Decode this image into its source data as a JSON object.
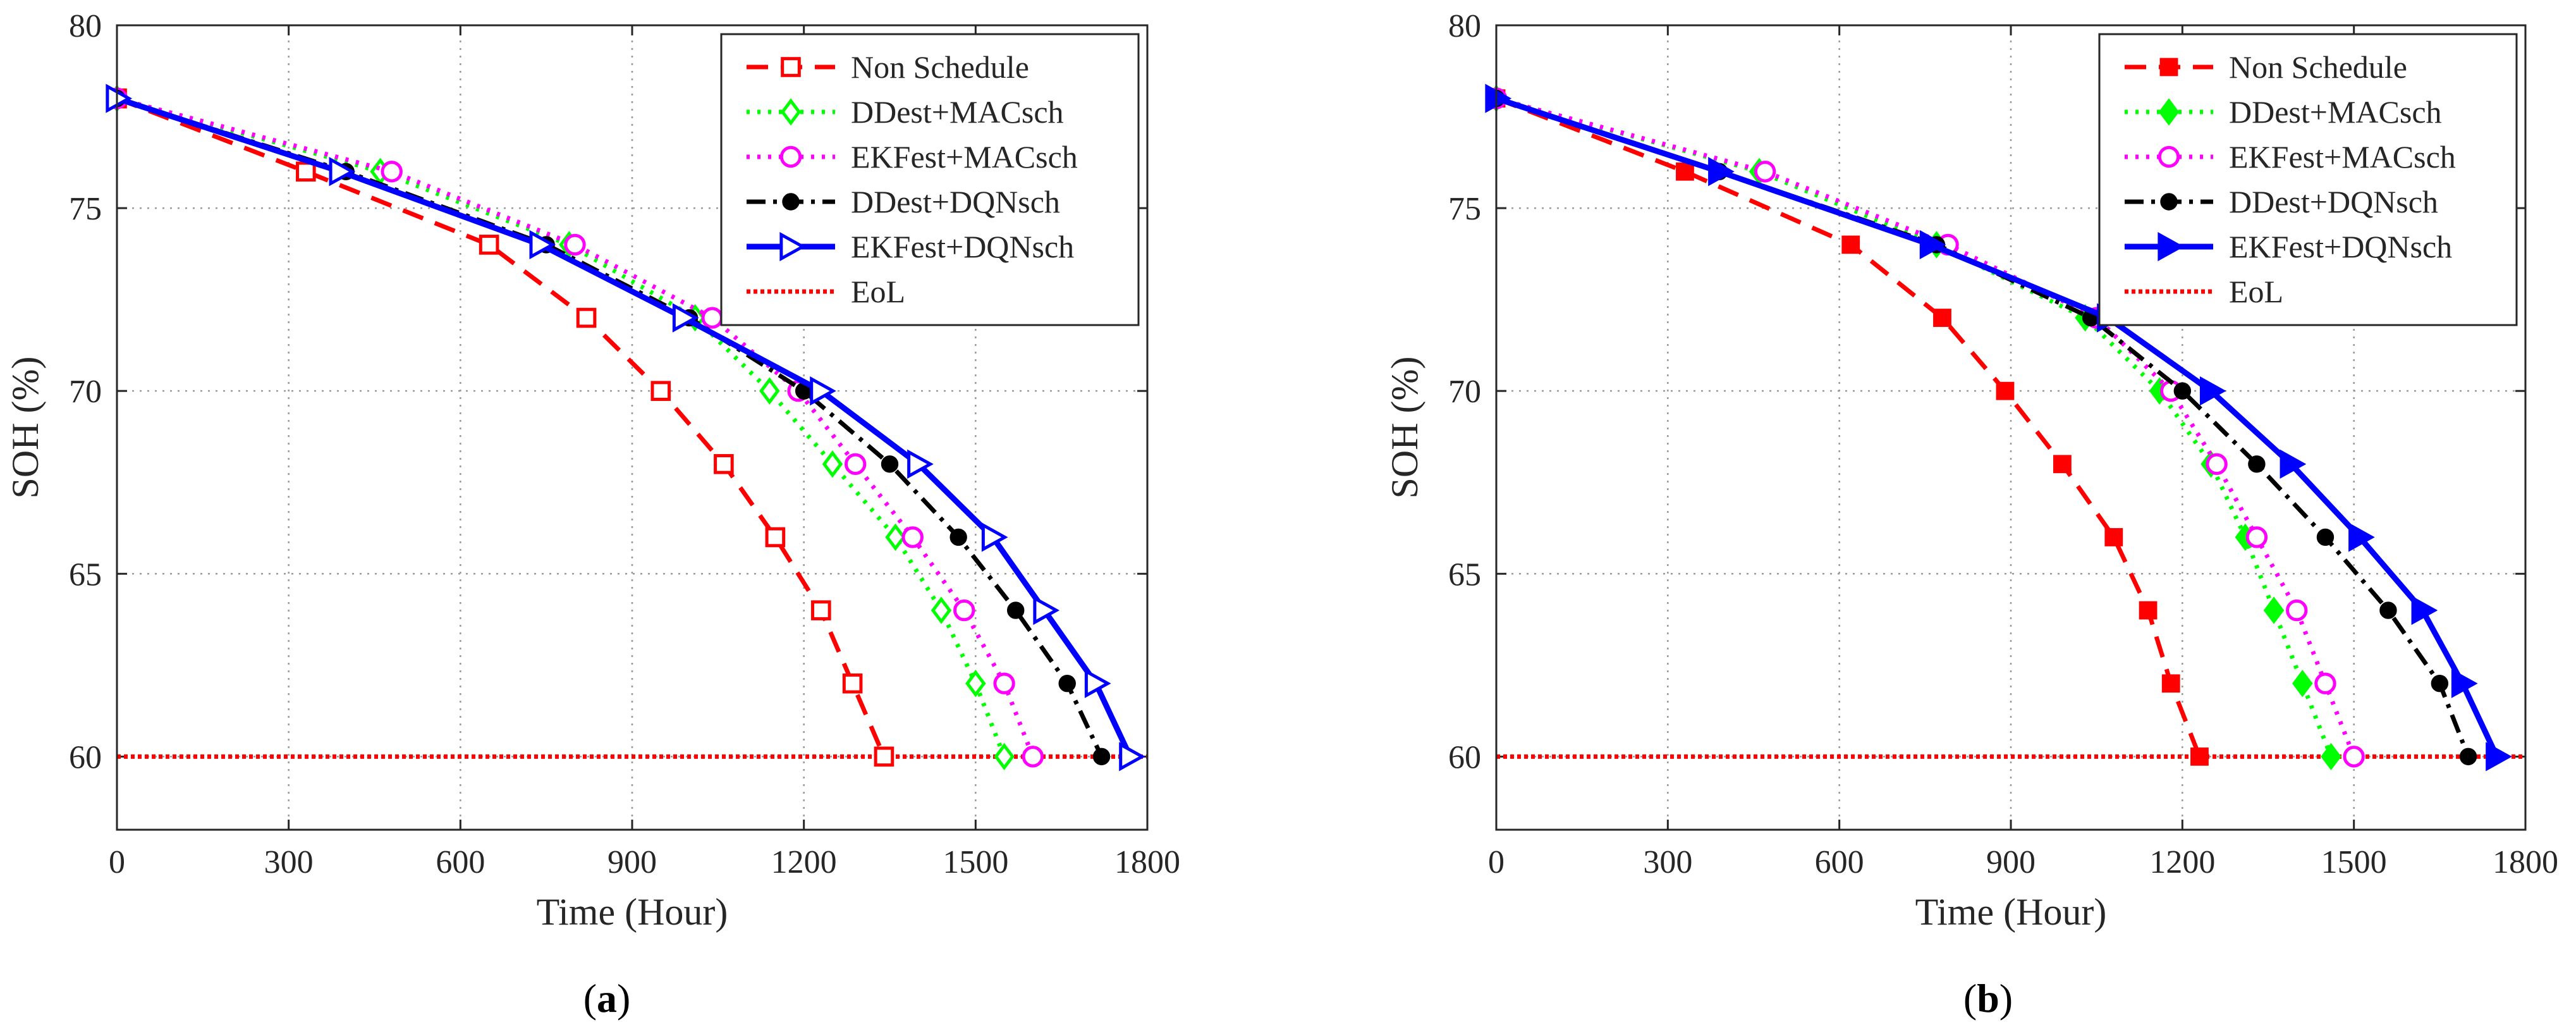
{
  "figure": {
    "colors": {
      "non_schedule": "#ff0000",
      "ddest_macsch": "#00ff00",
      "ekfest_macsch": "#ff00ff",
      "ddest_dqnsch": "#000000",
      "ekfest_dqnsch": "#0000ff",
      "eol": "#ff0000",
      "grid": "#9a9a9a",
      "axes": "#262626"
    }
  },
  "chart_data": [
    {
      "type": "line",
      "panel_caption": "(a)",
      "caption_open": "(",
      "caption_letter": "a",
      "caption_close": ")",
      "xlabel": "Time (Hour)",
      "ylabel": "SOH (%)",
      "xlim": [
        0,
        1800
      ],
      "ylim": [
        58,
        80
      ],
      "xticks": [
        0,
        300,
        600,
        900,
        1200,
        1500,
        1800
      ],
      "yticks": [
        60,
        65,
        70,
        75,
        80
      ],
      "grid": true,
      "legend_position": "top-right",
      "series": [
        {
          "name": "Non Schedule",
          "color": "#ff0000",
          "dash": "dashed",
          "marker": "square-open",
          "points": [
            [
              0,
              78
            ],
            [
              330,
              76
            ],
            [
              650,
              74
            ],
            [
              820,
              72
            ],
            [
              950,
              70
            ],
            [
              1060,
              68
            ],
            [
              1150,
              66
            ],
            [
              1230,
              64
            ],
            [
              1285,
              62
            ],
            [
              1340,
              60
            ]
          ]
        },
        {
          "name": "DDest+MACsch",
          "color": "#00ff00",
          "dash": "dotted",
          "marker": "diamond-open",
          "points": [
            [
              0,
              78
            ],
            [
              460,
              76
            ],
            [
              790,
              74
            ],
            [
              1010,
              72
            ],
            [
              1140,
              70
            ],
            [
              1250,
              68
            ],
            [
              1360,
              66
            ],
            [
              1440,
              64
            ],
            [
              1500,
              62
            ],
            [
              1550,
              60
            ]
          ]
        },
        {
          "name": "EKFest+MACsch",
          "color": "#ff00ff",
          "dash": "dotted",
          "marker": "circle-open",
          "points": [
            [
              0,
              78
            ],
            [
              480,
              76
            ],
            [
              800,
              74
            ],
            [
              1040,
              72
            ],
            [
              1190,
              70
            ],
            [
              1290,
              68
            ],
            [
              1390,
              66
            ],
            [
              1480,
              64
            ],
            [
              1550,
              62
            ],
            [
              1600,
              60
            ]
          ]
        },
        {
          "name": "DDest+DQNsch",
          "color": "#000000",
          "dash": "dashdot",
          "marker": "circle-filled",
          "points": [
            [
              0,
              78
            ],
            [
              400,
              76
            ],
            [
              750,
              74
            ],
            [
              1000,
              72
            ],
            [
              1200,
              70
            ],
            [
              1350,
              68
            ],
            [
              1470,
              66
            ],
            [
              1570,
              64
            ],
            [
              1660,
              62
            ],
            [
              1720,
              60
            ]
          ]
        },
        {
          "name": "EKFest+DQNsch",
          "color": "#0000ff",
          "dash": "solid",
          "marker": "triangle-right-open",
          "points": [
            [
              0,
              78
            ],
            [
              390,
              76
            ],
            [
              740,
              74
            ],
            [
              990,
              72
            ],
            [
              1230,
              70
            ],
            [
              1400,
              68
            ],
            [
              1530,
              66
            ],
            [
              1620,
              64
            ],
            [
              1710,
              62
            ],
            [
              1770,
              60
            ]
          ]
        },
        {
          "name": "EoL",
          "color": "#ff0000",
          "dash": "dense-dotted",
          "marker": "none",
          "points": [
            [
              0,
              60
            ],
            [
              1800,
              60
            ]
          ]
        }
      ]
    },
    {
      "type": "line",
      "panel_caption": "(b)",
      "caption_open": "(",
      "caption_letter": "b",
      "caption_close": ")",
      "xlabel": "Time (Hour)",
      "ylabel": "SOH (%)",
      "xlim": [
        0,
        1800
      ],
      "ylim": [
        58,
        80
      ],
      "xticks": [
        0,
        300,
        600,
        900,
        1200,
        1500,
        1800
      ],
      "yticks": [
        60,
        65,
        70,
        75,
        80
      ],
      "grid": true,
      "legend_position": "top-right",
      "series": [
        {
          "name": "Non Schedule",
          "color": "#ff0000",
          "dash": "dashed",
          "marker": "square-filled",
          "points": [
            [
              0,
              78
            ],
            [
              330,
              76
            ],
            [
              620,
              74
            ],
            [
              780,
              72
            ],
            [
              890,
              70
            ],
            [
              990,
              68
            ],
            [
              1080,
              66
            ],
            [
              1140,
              64
            ],
            [
              1180,
              62
            ],
            [
              1230,
              60
            ]
          ]
        },
        {
          "name": "DDest+MACsch",
          "color": "#00ff00",
          "dash": "dotted",
          "marker": "diamond-filled",
          "points": [
            [
              0,
              78
            ],
            [
              460,
              76
            ],
            [
              770,
              74
            ],
            [
              1030,
              72
            ],
            [
              1160,
              70
            ],
            [
              1250,
              68
            ],
            [
              1310,
              66
            ],
            [
              1360,
              64
            ],
            [
              1410,
              62
            ],
            [
              1460,
              60
            ]
          ]
        },
        {
          "name": "EKFest+MACsch",
          "color": "#ff00ff",
          "dash": "dotted",
          "marker": "circle-open",
          "points": [
            [
              0,
              78
            ],
            [
              470,
              76
            ],
            [
              790,
              74
            ],
            [
              1050,
              72
            ],
            [
              1180,
              70
            ],
            [
              1260,
              68
            ],
            [
              1330,
              66
            ],
            [
              1400,
              64
            ],
            [
              1450,
              62
            ],
            [
              1500,
              60
            ]
          ]
        },
        {
          "name": "DDest+DQNsch",
          "color": "#000000",
          "dash": "dashdot",
          "marker": "circle-filled",
          "points": [
            [
              0,
              78
            ],
            [
              390,
              76
            ],
            [
              770,
              74
            ],
            [
              1040,
              72
            ],
            [
              1200,
              70
            ],
            [
              1330,
              68
            ],
            [
              1450,
              66
            ],
            [
              1560,
              64
            ],
            [
              1650,
              62
            ],
            [
              1700,
              60
            ]
          ]
        },
        {
          "name": "EKFest+DQNsch",
          "color": "#0000ff",
          "dash": "solid",
          "marker": "triangle-right-filled",
          "points": [
            [
              0,
              78
            ],
            [
              390,
              76
            ],
            [
              760,
              74
            ],
            [
              1070,
              72
            ],
            [
              1250,
              70
            ],
            [
              1390,
              68
            ],
            [
              1510,
              66
            ],
            [
              1620,
              64
            ],
            [
              1690,
              62
            ],
            [
              1750,
              60
            ]
          ]
        },
        {
          "name": "EoL",
          "color": "#ff0000",
          "dash": "dense-dotted",
          "marker": "none",
          "points": [
            [
              0,
              60
            ],
            [
              1800,
              60
            ]
          ]
        }
      ]
    }
  ]
}
